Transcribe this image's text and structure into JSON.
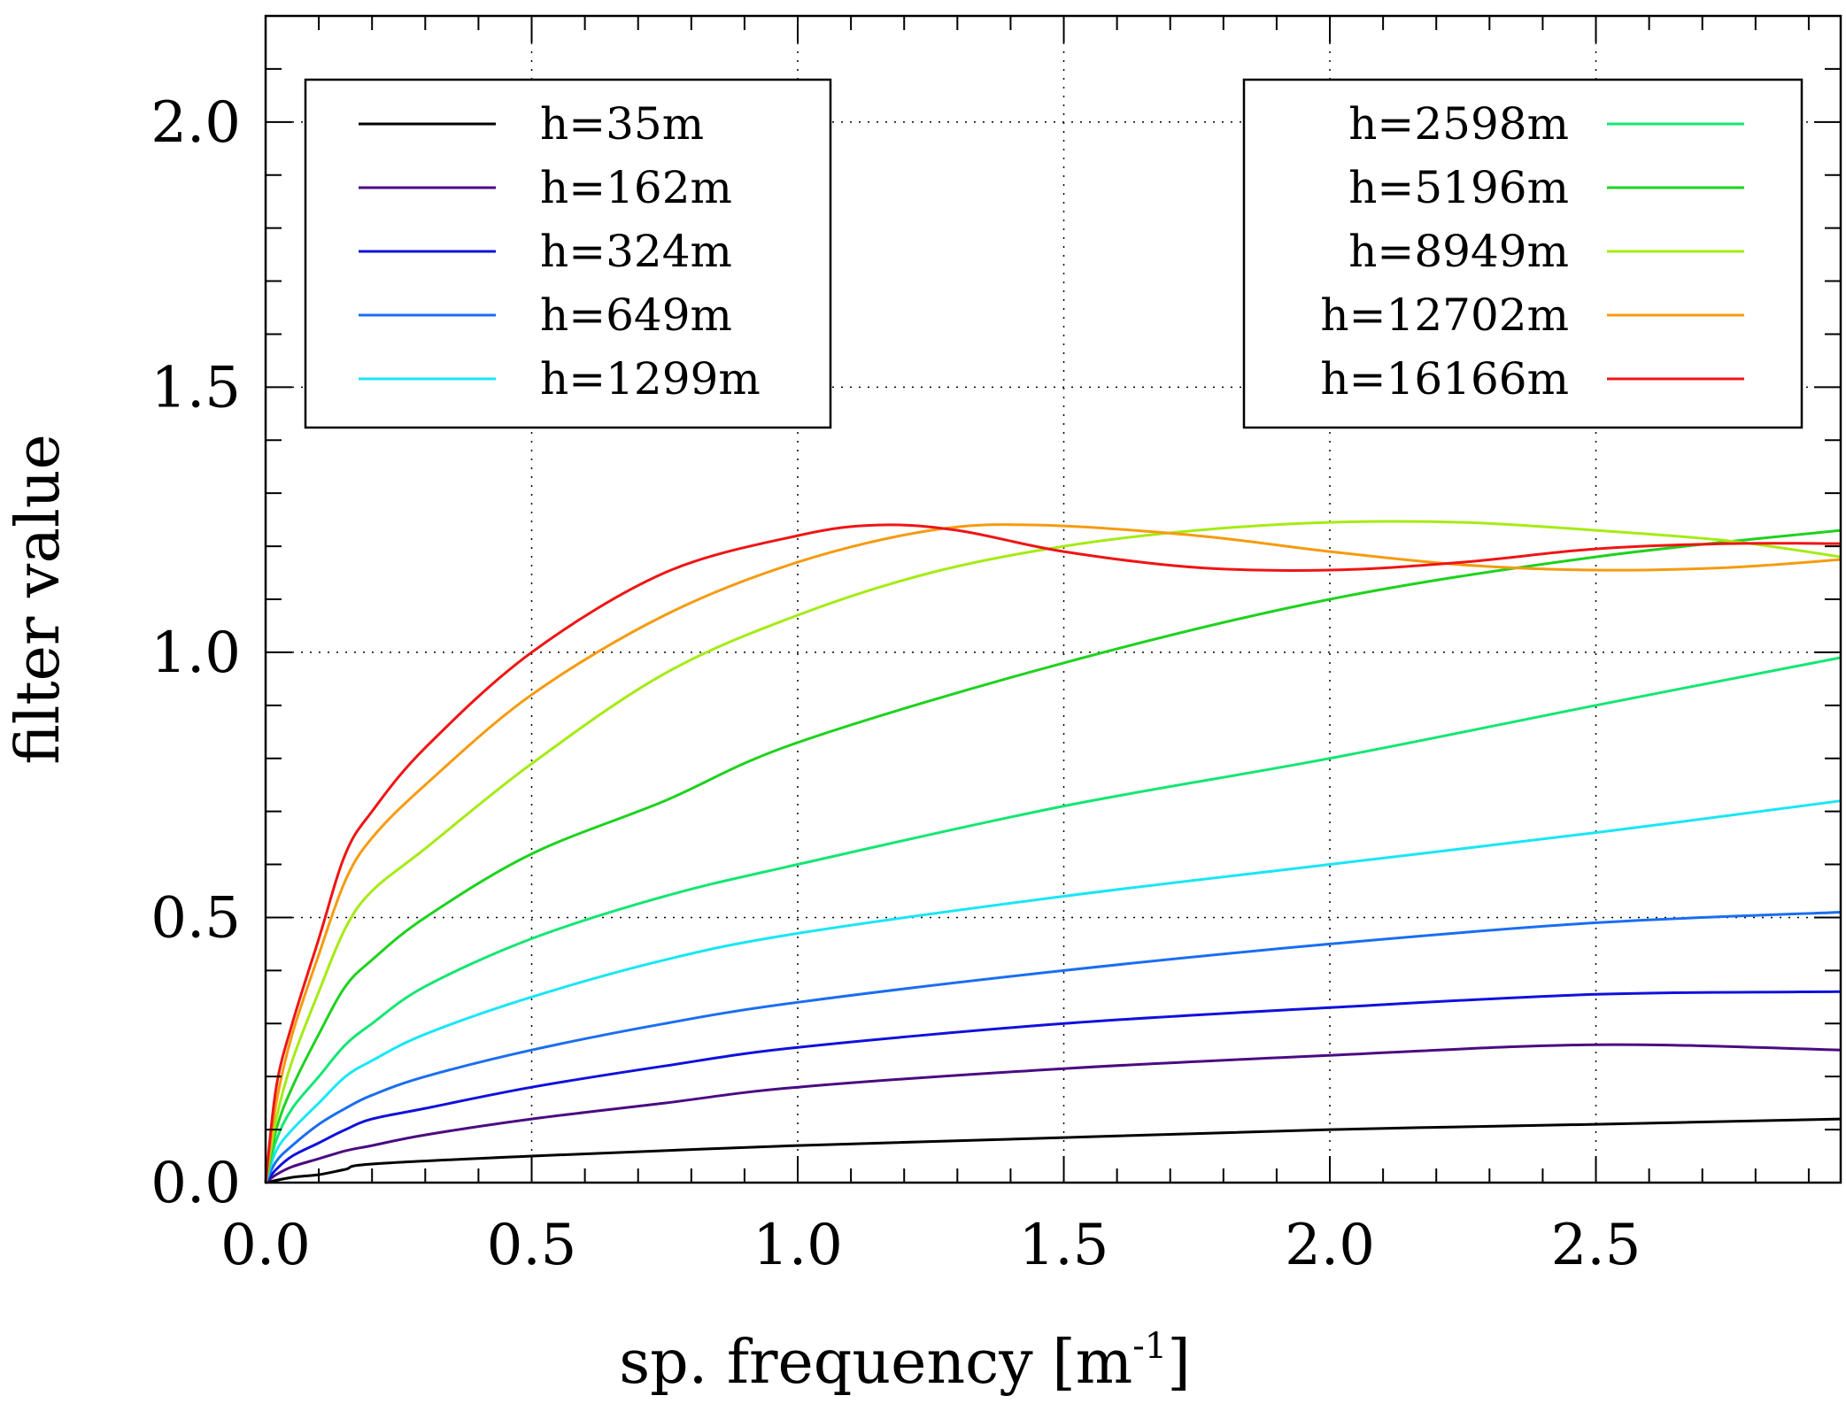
{
  "chart_data": {
    "type": "line",
    "xlabel": "sp. frequency [m",
    "xlabel_superscript": "-1",
    "xlabel_close": "]",
    "ylabel": "filter value",
    "xlim": [
      0,
      2.96
    ],
    "ylim": [
      0,
      2.2
    ],
    "grid": true,
    "x_ticks": [
      0.0,
      0.5,
      1.0,
      1.5,
      2.0,
      2.5
    ],
    "x_tick_labels": [
      "0.0",
      "0.5",
      "1.0",
      "1.5",
      "2.0",
      "2.5"
    ],
    "y_ticks": [
      0.0,
      0.5,
      1.0,
      1.5,
      2.0
    ],
    "y_tick_labels": [
      "0.0",
      "0.5",
      "1.0",
      "1.5",
      "2.0"
    ],
    "legends": [
      {
        "placement": "top-left",
        "entries": [
          "h=35m",
          "h=162m",
          "h=324m",
          "h=649m",
          "h=1299m"
        ]
      },
      {
        "placement": "top-right",
        "entries": [
          "h=2598m",
          "h=5196m",
          "h=8949m",
          "h=12702m",
          "h=16166m"
        ]
      }
    ],
    "series": [
      {
        "name": "h=35m",
        "color": "#000000",
        "x": [
          0,
          0.05,
          0.1,
          0.15,
          0.2,
          0.5,
          1.0,
          1.5,
          2.0,
          2.5,
          2.96
        ],
        "y": [
          0,
          0.01,
          0.015,
          0.025,
          0.035,
          0.05,
          0.07,
          0.085,
          0.1,
          0.11,
          0.12
        ]
      },
      {
        "name": "h=162m",
        "color": "#4b0a82",
        "x": [
          0,
          0.02,
          0.05,
          0.1,
          0.15,
          0.2,
          0.3,
          0.5,
          0.75,
          1.0,
          1.5,
          2.0,
          2.5,
          2.96
        ],
        "y": [
          0,
          0.015,
          0.03,
          0.045,
          0.06,
          0.07,
          0.09,
          0.12,
          0.15,
          0.18,
          0.215,
          0.24,
          0.26,
          0.25
        ]
      },
      {
        "name": "h=324m",
        "color": "#1010dd",
        "x": [
          0,
          0.02,
          0.05,
          0.1,
          0.15,
          0.2,
          0.3,
          0.5,
          0.75,
          1.0,
          1.5,
          2.0,
          2.5,
          2.96
        ],
        "y": [
          0,
          0.025,
          0.05,
          0.075,
          0.1,
          0.12,
          0.14,
          0.18,
          0.22,
          0.255,
          0.3,
          0.33,
          0.355,
          0.36
        ]
      },
      {
        "name": "h=649m",
        "color": "#1a6ef0",
        "x": [
          0,
          0.02,
          0.05,
          0.1,
          0.15,
          0.2,
          0.3,
          0.5,
          0.75,
          1.0,
          1.5,
          2.0,
          2.5,
          2.96
        ],
        "y": [
          0,
          0.04,
          0.07,
          0.11,
          0.14,
          0.165,
          0.2,
          0.25,
          0.3,
          0.34,
          0.4,
          0.45,
          0.49,
          0.51
        ]
      },
      {
        "name": "h=1299m",
        "color": "#19e6f5",
        "x": [
          0,
          0.02,
          0.05,
          0.1,
          0.15,
          0.2,
          0.3,
          0.5,
          0.75,
          1.0,
          1.5,
          2.0,
          2.5,
          2.96
        ],
        "y": [
          0,
          0.06,
          0.1,
          0.15,
          0.2,
          0.23,
          0.28,
          0.35,
          0.42,
          0.47,
          0.54,
          0.6,
          0.66,
          0.72
        ]
      },
      {
        "name": "h=2598m",
        "color": "#14e673",
        "x": [
          0,
          0.02,
          0.05,
          0.1,
          0.15,
          0.2,
          0.3,
          0.5,
          0.75,
          1.0,
          1.5,
          2.0,
          2.5,
          2.96
        ],
        "y": [
          0,
          0.08,
          0.14,
          0.2,
          0.26,
          0.3,
          0.37,
          0.46,
          0.54,
          0.6,
          0.71,
          0.8,
          0.9,
          0.99
        ]
      },
      {
        "name": "h=5196m",
        "color": "#1ed21e",
        "x": [
          0,
          0.02,
          0.05,
          0.1,
          0.15,
          0.2,
          0.3,
          0.5,
          0.75,
          1.0,
          1.5,
          2.0,
          2.5,
          2.96
        ],
        "y": [
          0,
          0.1,
          0.18,
          0.28,
          0.37,
          0.42,
          0.5,
          0.62,
          0.72,
          0.83,
          0.98,
          1.1,
          1.18,
          1.23
        ]
      },
      {
        "name": "h=8949m",
        "color": "#a5eb14",
        "x": [
          0,
          0.02,
          0.05,
          0.1,
          0.15,
          0.2,
          0.3,
          0.5,
          0.75,
          1.0,
          1.25,
          1.5,
          1.75,
          2.0,
          2.25,
          2.5,
          2.75,
          2.96
        ],
        "y": [
          0,
          0.12,
          0.23,
          0.36,
          0.48,
          0.55,
          0.63,
          0.79,
          0.96,
          1.07,
          1.15,
          1.2,
          1.23,
          1.245,
          1.245,
          1.23,
          1.21,
          1.18
        ]
      },
      {
        "name": "h=12702m",
        "color": "#f59b0f",
        "x": [
          0,
          0.02,
          0.05,
          0.1,
          0.15,
          0.2,
          0.3,
          0.5,
          0.75,
          1.0,
          1.25,
          1.45,
          1.75,
          2.0,
          2.25,
          2.5,
          2.75,
          2.96
        ],
        "y": [
          0,
          0.15,
          0.28,
          0.43,
          0.57,
          0.65,
          0.75,
          0.92,
          1.07,
          1.17,
          1.23,
          1.24,
          1.22,
          1.19,
          1.165,
          1.155,
          1.16,
          1.175
        ]
      },
      {
        "name": "h=16166m",
        "color": "#f01414",
        "x": [
          0,
          0.02,
          0.05,
          0.1,
          0.15,
          0.2,
          0.3,
          0.5,
          0.75,
          1.0,
          1.15,
          1.3,
          1.5,
          1.75,
          2.0,
          2.25,
          2.5,
          2.75,
          2.96
        ],
        "y": [
          0,
          0.18,
          0.3,
          0.46,
          0.62,
          0.7,
          0.82,
          1.0,
          1.15,
          1.22,
          1.24,
          1.23,
          1.19,
          1.16,
          1.155,
          1.17,
          1.195,
          1.205,
          1.205
        ]
      }
    ]
  }
}
